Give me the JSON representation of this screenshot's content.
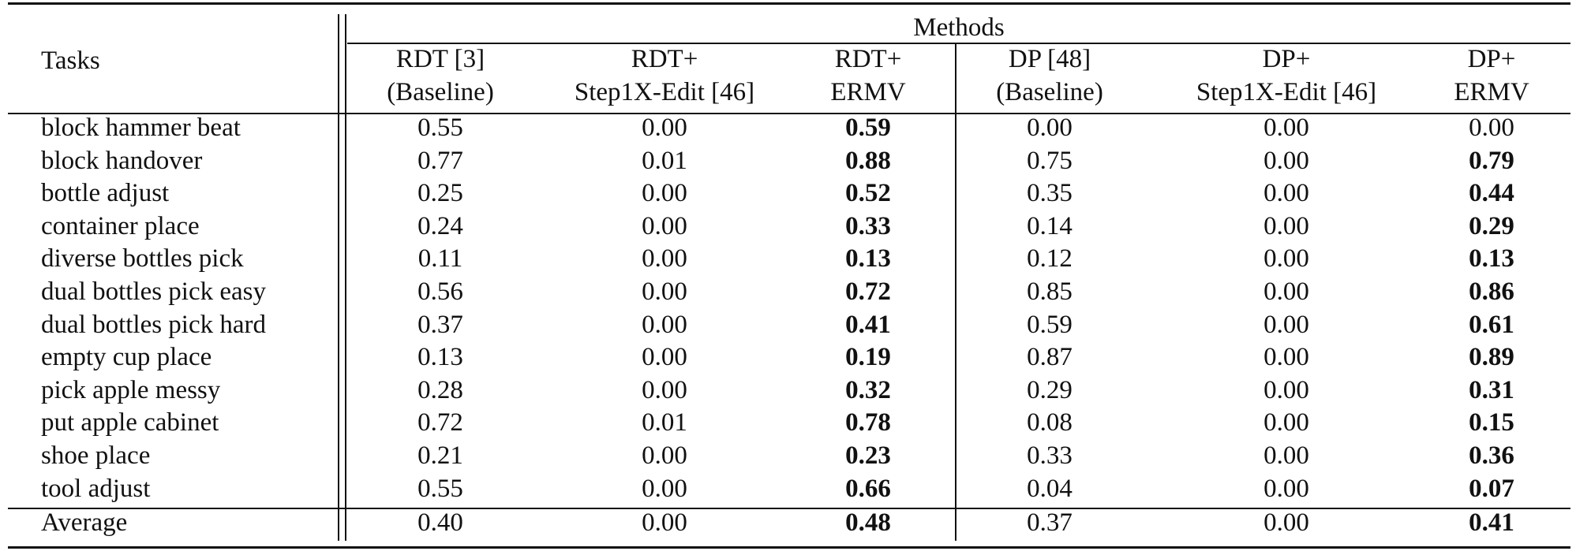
{
  "table": {
    "group_header": "Methods",
    "row_header": "Tasks",
    "columns": [
      [
        "RDT [3]",
        "(Baseline)"
      ],
      [
        "RDT+",
        "Step1X-Edit [46]"
      ],
      [
        "RDT+",
        "ERMV"
      ],
      [
        "DP [48]",
        "(Baseline)"
      ],
      [
        "DP+",
        "Step1X-Edit [46]"
      ],
      [
        "DP+",
        "ERMV"
      ]
    ],
    "rows": [
      {
        "task": "block hammer beat",
        "values": [
          "0.55",
          "0.00",
          "0.59",
          "0.00",
          "0.00",
          "0.00"
        ],
        "bold": [
          2
        ]
      },
      {
        "task": "block handover",
        "values": [
          "0.77",
          "0.01",
          "0.88",
          "0.75",
          "0.00",
          "0.79"
        ],
        "bold": [
          2,
          5
        ]
      },
      {
        "task": "bottle adjust",
        "values": [
          "0.25",
          "0.00",
          "0.52",
          "0.35",
          "0.00",
          "0.44"
        ],
        "bold": [
          2,
          5
        ]
      },
      {
        "task": "container place",
        "values": [
          "0.24",
          "0.00",
          "0.33",
          "0.14",
          "0.00",
          "0.29"
        ],
        "bold": [
          2,
          5
        ]
      },
      {
        "task": "diverse bottles pick",
        "values": [
          "0.11",
          "0.00",
          "0.13",
          "0.12",
          "0.00",
          "0.13"
        ],
        "bold": [
          2,
          5
        ]
      },
      {
        "task": "dual bottles pick easy",
        "values": [
          "0.56",
          "0.00",
          "0.72",
          "0.85",
          "0.00",
          "0.86"
        ],
        "bold": [
          2,
          5
        ]
      },
      {
        "task": "dual bottles pick hard",
        "values": [
          "0.37",
          "0.00",
          "0.41",
          "0.59",
          "0.00",
          "0.61"
        ],
        "bold": [
          2,
          5
        ]
      },
      {
        "task": "empty cup place",
        "values": [
          "0.13",
          "0.00",
          "0.19",
          "0.87",
          "0.00",
          "0.89"
        ],
        "bold": [
          2,
          5
        ]
      },
      {
        "task": "pick apple messy",
        "values": [
          "0.28",
          "0.00",
          "0.32",
          "0.29",
          "0.00",
          "0.31"
        ],
        "bold": [
          2,
          5
        ]
      },
      {
        "task": "put apple cabinet",
        "values": [
          "0.72",
          "0.01",
          "0.78",
          "0.08",
          "0.00",
          "0.15"
        ],
        "bold": [
          2,
          5
        ]
      },
      {
        "task": "shoe place",
        "values": [
          "0.21",
          "0.00",
          "0.23",
          "0.33",
          "0.00",
          "0.36"
        ],
        "bold": [
          2,
          5
        ]
      },
      {
        "task": "tool adjust",
        "values": [
          "0.55",
          "0.00",
          "0.66",
          "0.04",
          "0.00",
          "0.07"
        ],
        "bold": [
          2,
          5
        ]
      }
    ],
    "average": {
      "task": "Average",
      "values": [
        "0.40",
        "0.00",
        "0.48",
        "0.37",
        "0.00",
        "0.41"
      ],
      "bold": [
        2,
        5
      ]
    }
  }
}
